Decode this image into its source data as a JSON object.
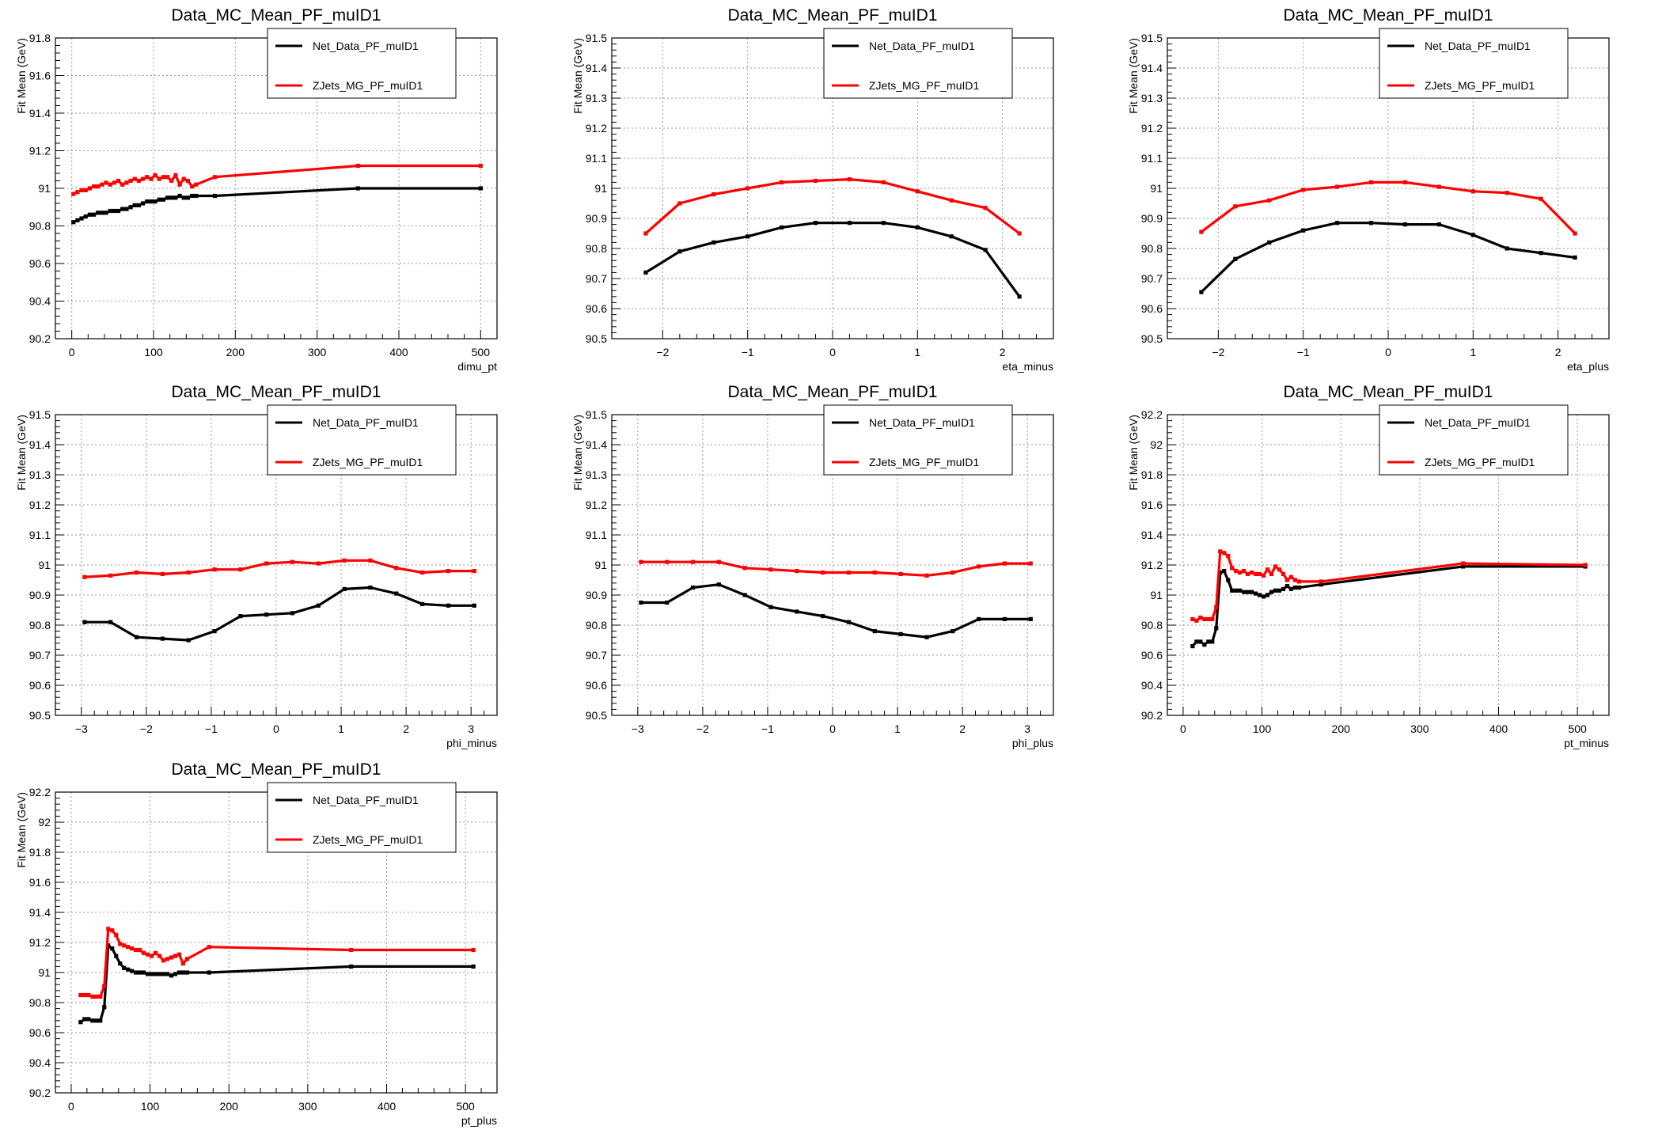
{
  "page": {
    "title": ""
  },
  "colors": {
    "data": "#000000",
    "mc": "#ff0000",
    "grid": "#9a9a9a",
    "frame": "#000000"
  },
  "chart_data": [
    {
      "type": "line",
      "title": "Data_MC_Mean_PF_muID1",
      "xlabel": "dimu_pt",
      "ylabel": "Fit Mean (GeV)",
      "xlim": [
        -20,
        520
      ],
      "ylim": [
        90.2,
        91.8
      ],
      "xticks": [
        0,
        100,
        200,
        300,
        400,
        500
      ],
      "xtick_labels": [
        "0",
        "100",
        "200",
        "300",
        "400",
        "500"
      ],
      "yticks": [
        90.2,
        90.4,
        90.6,
        90.8,
        91,
        91.2,
        91.4,
        91.6,
        91.8
      ],
      "ytick_labels": [
        "90.2",
        "90.4",
        "90.6",
        "90.8",
        "91",
        "91.2",
        "91.4",
        "91.6",
        "91.8"
      ],
      "grid": true,
      "legend": "top-right",
      "series": [
        {
          "name": "Net_Data_PF_muID1",
          "x": [
            2,
            7,
            12,
            17,
            22,
            27,
            32,
            37,
            42,
            47,
            52,
            57,
            62,
            67,
            72,
            77,
            82,
            87,
            92,
            97,
            102,
            107,
            112,
            117,
            122,
            127,
            132,
            137,
            142,
            147,
            152,
            175,
            350,
            500
          ],
          "y": [
            90.82,
            90.83,
            90.84,
            90.85,
            90.86,
            90.86,
            90.87,
            90.87,
            90.87,
            90.88,
            90.88,
            90.88,
            90.89,
            90.89,
            90.9,
            90.91,
            90.91,
            90.92,
            90.93,
            90.93,
            90.93,
            90.94,
            90.94,
            90.95,
            90.95,
            90.95,
            90.96,
            90.95,
            90.95,
            90.96,
            90.96,
            90.96,
            91.0,
            91.0
          ]
        },
        {
          "name": "ZJets_MG_PF_muID1",
          "x": [
            2,
            7,
            12,
            17,
            22,
            27,
            32,
            37,
            42,
            47,
            52,
            57,
            62,
            67,
            72,
            77,
            82,
            87,
            92,
            97,
            102,
            107,
            112,
            117,
            122,
            127,
            132,
            137,
            142,
            147,
            152,
            175,
            350,
            500
          ],
          "y": [
            90.97,
            90.98,
            90.99,
            90.99,
            91.0,
            91.01,
            91.01,
            91.02,
            91.03,
            91.02,
            91.03,
            91.04,
            91.02,
            91.03,
            91.04,
            91.05,
            91.04,
            91.05,
            91.06,
            91.05,
            91.07,
            91.05,
            91.06,
            91.06,
            91.04,
            91.07,
            91.02,
            91.05,
            91.04,
            91.01,
            91.02,
            91.06,
            91.12,
            91.12
          ]
        }
      ]
    },
    {
      "type": "line",
      "title": "Data_MC_Mean_PF_muID1",
      "xlabel": "eta_minus",
      "ylabel": "Fit Mean (GeV)",
      "xlim": [
        -2.6,
        2.6
      ],
      "ylim": [
        90.5,
        91.5
      ],
      "xticks": [
        -2,
        -1,
        0,
        1,
        2
      ],
      "xtick_labels": [
        "−2",
        "−1",
        "0",
        "1",
        "2"
      ],
      "yticks": [
        90.5,
        90.6,
        90.7,
        90.8,
        90.9,
        91,
        91.1,
        91.2,
        91.3,
        91.4,
        91.5
      ],
      "ytick_labels": [
        "90.5",
        "90.6",
        "90.7",
        "90.8",
        "90.9",
        "91",
        "91.1",
        "91.2",
        "91.3",
        "91.4",
        "91.5"
      ],
      "grid": true,
      "legend": "top-right",
      "series": [
        {
          "name": "Net_Data_PF_muID1",
          "x": [
            -2.2,
            -1.8,
            -1.4,
            -1.0,
            -0.6,
            -0.2,
            0.2,
            0.6,
            1.0,
            1.4,
            1.8,
            2.2
          ],
          "y": [
            90.72,
            90.79,
            90.82,
            90.84,
            90.87,
            90.885,
            90.885,
            90.885,
            90.87,
            90.84,
            90.795,
            90.64
          ]
        },
        {
          "name": "ZJets_MG_PF_muID1",
          "x": [
            -2.2,
            -1.8,
            -1.4,
            -1.0,
            -0.6,
            -0.2,
            0.2,
            0.6,
            1.0,
            1.4,
            1.8,
            2.2
          ],
          "y": [
            90.85,
            90.95,
            90.98,
            91.0,
            91.02,
            91.025,
            91.03,
            91.02,
            90.99,
            90.96,
            90.935,
            90.85
          ]
        }
      ]
    },
    {
      "type": "line",
      "title": "Data_MC_Mean_PF_muID1",
      "xlabel": "eta_plus",
      "ylabel": "Fit Mean (GeV)",
      "xlim": [
        -2.6,
        2.6
      ],
      "ylim": [
        90.5,
        91.5
      ],
      "xticks": [
        -2,
        -1,
        0,
        1,
        2
      ],
      "xtick_labels": [
        "−2",
        "−1",
        "0",
        "1",
        "2"
      ],
      "yticks": [
        90.5,
        90.6,
        90.7,
        90.8,
        90.9,
        91,
        91.1,
        91.2,
        91.3,
        91.4,
        91.5
      ],
      "ytick_labels": [
        "90.5",
        "90.6",
        "90.7",
        "90.8",
        "90.9",
        "91",
        "91.1",
        "91.2",
        "91.3",
        "91.4",
        "91.5"
      ],
      "grid": true,
      "legend": "top-right",
      "series": [
        {
          "name": "Net_Data_PF_muID1",
          "x": [
            -2.2,
            -1.8,
            -1.4,
            -1.0,
            -0.6,
            -0.2,
            0.2,
            0.6,
            1.0,
            1.4,
            1.8,
            2.2
          ],
          "y": [
            90.655,
            90.765,
            90.82,
            90.86,
            90.885,
            90.885,
            90.88,
            90.88,
            90.845,
            90.8,
            90.785,
            90.77
          ]
        },
        {
          "name": "ZJets_MG_PF_muID1",
          "x": [
            -2.2,
            -1.8,
            -1.4,
            -1.0,
            -0.6,
            -0.2,
            0.2,
            0.6,
            1.0,
            1.4,
            1.8,
            2.2
          ],
          "y": [
            90.855,
            90.94,
            90.96,
            90.995,
            91.005,
            91.02,
            91.02,
            91.005,
            90.99,
            90.985,
            90.965,
            90.85
          ]
        }
      ]
    },
    {
      "type": "line",
      "title": "Data_MC_Mean_PF_muID1",
      "xlabel": "phi_minus",
      "ylabel": "Fit Mean (GeV)",
      "xlim": [
        -3.4,
        3.4
      ],
      "ylim": [
        90.5,
        91.5
      ],
      "xticks": [
        -3,
        -2,
        -1,
        0,
        1,
        2,
        3
      ],
      "xtick_labels": [
        "−3",
        "−2",
        "−1",
        "0",
        "1",
        "2",
        "3"
      ],
      "yticks": [
        90.5,
        90.6,
        90.7,
        90.8,
        90.9,
        91,
        91.1,
        91.2,
        91.3,
        91.4,
        91.5
      ],
      "ytick_labels": [
        "90.5",
        "90.6",
        "90.7",
        "90.8",
        "90.9",
        "91",
        "91.1",
        "91.2",
        "91.3",
        "91.4",
        "91.5"
      ],
      "grid": true,
      "legend": "top-right",
      "series": [
        {
          "name": "Net_Data_PF_muID1",
          "x": [
            -2.95,
            -2.55,
            -2.15,
            -1.75,
            -1.35,
            -0.95,
            -0.55,
            -0.15,
            0.25,
            0.65,
            1.05,
            1.45,
            1.85,
            2.25,
            2.65,
            3.05
          ],
          "y": [
            90.81,
            90.81,
            90.76,
            90.755,
            90.75,
            90.78,
            90.83,
            90.835,
            90.84,
            90.865,
            90.92,
            90.925,
            90.905,
            90.87,
            90.865,
            90.865
          ]
        },
        {
          "name": "ZJets_MG_PF_muID1",
          "x": [
            -2.95,
            -2.55,
            -2.15,
            -1.75,
            -1.35,
            -0.95,
            -0.55,
            -0.15,
            0.25,
            0.65,
            1.05,
            1.45,
            1.85,
            2.25,
            2.65,
            3.05
          ],
          "y": [
            90.96,
            90.965,
            90.975,
            90.97,
            90.975,
            90.985,
            90.985,
            91.005,
            91.01,
            91.005,
            91.015,
            91.015,
            90.99,
            90.975,
            90.98,
            90.98
          ]
        }
      ]
    },
    {
      "type": "line",
      "title": "Data_MC_Mean_PF_muID1",
      "xlabel": "phi_plus",
      "ylabel": "Fit Mean (GeV)",
      "xlim": [
        -3.4,
        3.4
      ],
      "ylim": [
        90.5,
        91.5
      ],
      "xticks": [
        -3,
        -2,
        -1,
        0,
        1,
        2,
        3
      ],
      "xtick_labels": [
        "−3",
        "−2",
        "−1",
        "0",
        "1",
        "2",
        "3"
      ],
      "yticks": [
        90.5,
        90.6,
        90.7,
        90.8,
        90.9,
        91,
        91.1,
        91.2,
        91.3,
        91.4,
        91.5
      ],
      "ytick_labels": [
        "90.5",
        "90.6",
        "90.7",
        "90.8",
        "90.9",
        "91",
        "91.1",
        "91.2",
        "91.3",
        "91.4",
        "91.5"
      ],
      "grid": true,
      "legend": "top-right",
      "series": [
        {
          "name": "Net_Data_PF_muID1",
          "x": [
            -2.95,
            -2.55,
            -2.15,
            -1.75,
            -1.35,
            -0.95,
            -0.55,
            -0.15,
            0.25,
            0.65,
            1.05,
            1.45,
            1.85,
            2.25,
            2.65,
            3.05
          ],
          "y": [
            90.875,
            90.875,
            90.925,
            90.935,
            90.9,
            90.86,
            90.845,
            90.83,
            90.81,
            90.78,
            90.77,
            90.76,
            90.78,
            90.82,
            90.82,
            90.82
          ]
        },
        {
          "name": "ZJets_MG_PF_muID1",
          "x": [
            -2.95,
            -2.55,
            -2.15,
            -1.75,
            -1.35,
            -0.95,
            -0.55,
            -0.15,
            0.25,
            0.65,
            1.05,
            1.45,
            1.85,
            2.25,
            2.65,
            3.05
          ],
          "y": [
            91.01,
            91.01,
            91.01,
            91.01,
            90.99,
            90.985,
            90.98,
            90.975,
            90.975,
            90.975,
            90.97,
            90.965,
            90.975,
            90.995,
            91.005,
            91.005
          ]
        }
      ]
    },
    {
      "type": "line",
      "title": "Data_MC_Mean_PF_muID1",
      "xlabel": "pt_minus",
      "ylabel": "Fit Mean (GeV)",
      "xlim": [
        -20,
        540
      ],
      "ylim": [
        90.2,
        92.2
      ],
      "xticks": [
        0,
        100,
        200,
        300,
        400,
        500
      ],
      "xtick_labels": [
        "0",
        "100",
        "200",
        "300",
        "400",
        "500"
      ],
      "yticks": [
        90.2,
        90.4,
        90.6,
        90.8,
        91,
        91.2,
        91.4,
        91.6,
        91.8,
        92,
        92.2
      ],
      "ytick_labels": [
        "90.2",
        "90.4",
        "90.6",
        "90.8",
        "91",
        "91.2",
        "91.4",
        "91.6",
        "91.8",
        "92",
        "92.2"
      ],
      "grid": true,
      "legend": "top-right",
      "series": [
        {
          "name": "Net_Data_PF_muID1",
          "x": [
            12,
            17,
            22,
            27,
            32,
            37,
            42,
            47,
            52,
            57,
            62,
            67,
            72,
            77,
            82,
            87,
            92,
            97,
            102,
            107,
            112,
            117,
            122,
            127,
            132,
            137,
            142,
            147,
            175,
            355,
            510
          ],
          "y": [
            90.66,
            90.69,
            90.69,
            90.67,
            90.69,
            90.69,
            90.78,
            91.15,
            91.16,
            91.1,
            91.03,
            91.03,
            91.03,
            91.02,
            91.02,
            91.02,
            91.01,
            91.0,
            90.99,
            91.0,
            91.02,
            91.03,
            91.03,
            91.04,
            91.06,
            91.04,
            91.05,
            91.05,
            91.07,
            91.19,
            91.19
          ]
        },
        {
          "name": "ZJets_MG_PF_muID1",
          "x": [
            12,
            17,
            22,
            27,
            32,
            37,
            42,
            47,
            52,
            57,
            62,
            67,
            72,
            77,
            82,
            87,
            92,
            97,
            102,
            107,
            112,
            117,
            122,
            127,
            132,
            137,
            142,
            147,
            175,
            355,
            510
          ],
          "y": [
            90.84,
            90.83,
            90.85,
            90.84,
            90.84,
            90.84,
            90.92,
            91.29,
            91.28,
            91.26,
            91.18,
            91.16,
            91.15,
            91.16,
            91.14,
            91.15,
            91.14,
            91.14,
            91.13,
            91.17,
            91.14,
            91.19,
            91.17,
            91.14,
            91.1,
            91.12,
            91.1,
            91.09,
            91.09,
            91.21,
            91.2
          ]
        }
      ]
    },
    {
      "type": "line",
      "title": "Data_MC_Mean_PF_muID1",
      "xlabel": "pt_plus",
      "ylabel": "Fit Mean (GeV)",
      "xlim": [
        -20,
        540
      ],
      "ylim": [
        90.2,
        92.2
      ],
      "xticks": [
        0,
        100,
        200,
        300,
        400,
        500
      ],
      "xtick_labels": [
        "0",
        "100",
        "200",
        "300",
        "400",
        "500"
      ],
      "yticks": [
        90.2,
        90.4,
        90.6,
        90.8,
        91,
        91.2,
        91.4,
        91.6,
        91.8,
        92,
        92.2
      ],
      "ytick_labels": [
        "90.2",
        "90.4",
        "90.6",
        "90.8",
        "91",
        "91.2",
        "91.4",
        "91.6",
        "91.8",
        "92",
        "92.2"
      ],
      "grid": true,
      "legend": "top-right",
      "series": [
        {
          "name": "Net_Data_PF_muID1",
          "x": [
            12,
            17,
            22,
            27,
            32,
            37,
            42,
            47,
            52,
            57,
            62,
            67,
            72,
            77,
            82,
            87,
            92,
            97,
            102,
            107,
            112,
            117,
            122,
            127,
            132,
            137,
            142,
            147,
            175,
            355,
            510
          ],
          "y": [
            90.67,
            90.69,
            90.69,
            90.68,
            90.68,
            90.68,
            90.77,
            91.18,
            91.16,
            91.11,
            91.06,
            91.03,
            91.02,
            91.01,
            91.0,
            91.0,
            91.0,
            90.99,
            90.99,
            90.99,
            90.99,
            90.99,
            90.99,
            90.98,
            90.99,
            91.0,
            91.0,
            91.0,
            91.0,
            91.04,
            91.04
          ]
        },
        {
          "name": "ZJets_MG_PF_muID1",
          "x": [
            12,
            17,
            22,
            27,
            32,
            37,
            42,
            47,
            52,
            57,
            62,
            67,
            72,
            77,
            82,
            87,
            92,
            97,
            102,
            107,
            112,
            117,
            122,
            127,
            132,
            137,
            142,
            147,
            175,
            355,
            510
          ],
          "y": [
            90.85,
            90.85,
            90.85,
            90.84,
            90.84,
            90.84,
            90.91,
            91.29,
            91.28,
            91.25,
            91.19,
            91.18,
            91.17,
            91.16,
            91.15,
            91.15,
            91.13,
            91.12,
            91.11,
            91.13,
            91.11,
            91.08,
            91.09,
            91.1,
            91.11,
            91.12,
            91.06,
            91.09,
            91.17,
            91.15,
            91.15
          ]
        }
      ]
    }
  ]
}
